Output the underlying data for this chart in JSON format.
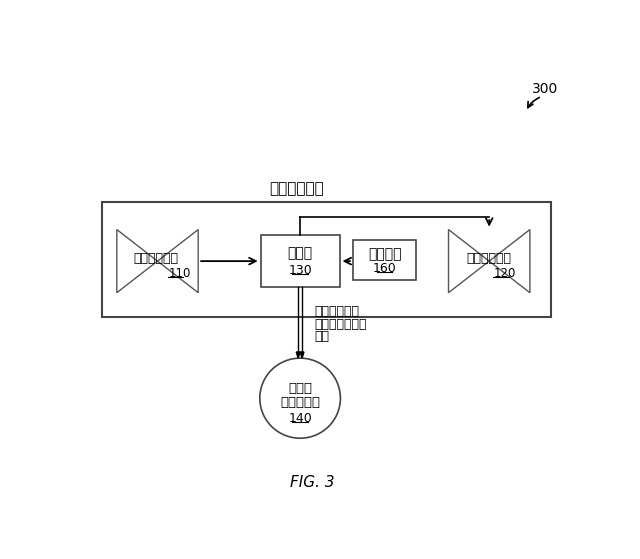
{
  "bg_color": "#ffffff",
  "fig_label": "FIG. 3",
  "ref_number": "300",
  "clutch_label": "クラッチ係合",
  "gas_turbine_label": "ガスタービン",
  "gas_turbine_num": "110",
  "steam_turbine_label": "蒸気タービン",
  "steam_turbine_num": "120",
  "generator_label": "発電機",
  "generator_num": "130",
  "clutch_box_label": "クラッチ",
  "clutch_box_num": "160",
  "grid_line1": "送電網",
  "grid_line2": "（電力網）",
  "grid_num": "140",
  "output_line1": "ガスタービン",
  "output_line2": "＋蒸気タービン",
  "output_line3": "出力"
}
